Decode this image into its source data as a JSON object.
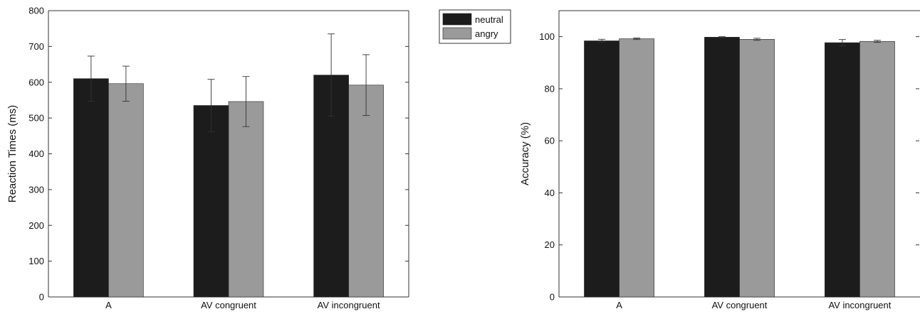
{
  "colors": {
    "neutral": "#1c1c1c",
    "angry": "#9a9a9a",
    "axis": "#333333",
    "error_bar": "#333333",
    "background": "#ffffff"
  },
  "legend": {
    "placement": "between-charts-top",
    "entries": [
      {
        "label": "neutral",
        "color": "#1c1c1c"
      },
      {
        "label": "angry",
        "color": "#9a9a9a"
      }
    ]
  },
  "chart_data": [
    {
      "type": "bar",
      "title": "",
      "xlabel": "",
      "ylabel": "Reaction Times (ms)",
      "ylim": [
        0,
        800
      ],
      "yticks": [
        0,
        100,
        200,
        300,
        400,
        500,
        600,
        700,
        800
      ],
      "grid": false,
      "categories": [
        "A",
        "AV congruent",
        "AV incongruent"
      ],
      "series": [
        {
          "name": "neutral",
          "values": [
            610,
            535,
            620
          ],
          "error": [
            63,
            73,
            115
          ]
        },
        {
          "name": "angry",
          "values": [
            596,
            546,
            592
          ],
          "error": [
            49,
            70,
            85
          ]
        }
      ]
    },
    {
      "type": "bar",
      "title": "",
      "xlabel": "",
      "ylabel": "Accuracy (%)",
      "ylim": [
        0,
        110
      ],
      "yticks": [
        0,
        20,
        40,
        60,
        80,
        100
      ],
      "grid": false,
      "categories": [
        "A",
        "AV congruent",
        "AV incongruent"
      ],
      "series": [
        {
          "name": "neutral",
          "values": [
            98.4,
            99.8,
            97.7
          ],
          "error": [
            0.6,
            0.2,
            1.2
          ]
        },
        {
          "name": "angry",
          "values": [
            99.2,
            99.0,
            98.2
          ],
          "error": [
            0.3,
            0.4,
            0.4
          ]
        }
      ]
    }
  ]
}
